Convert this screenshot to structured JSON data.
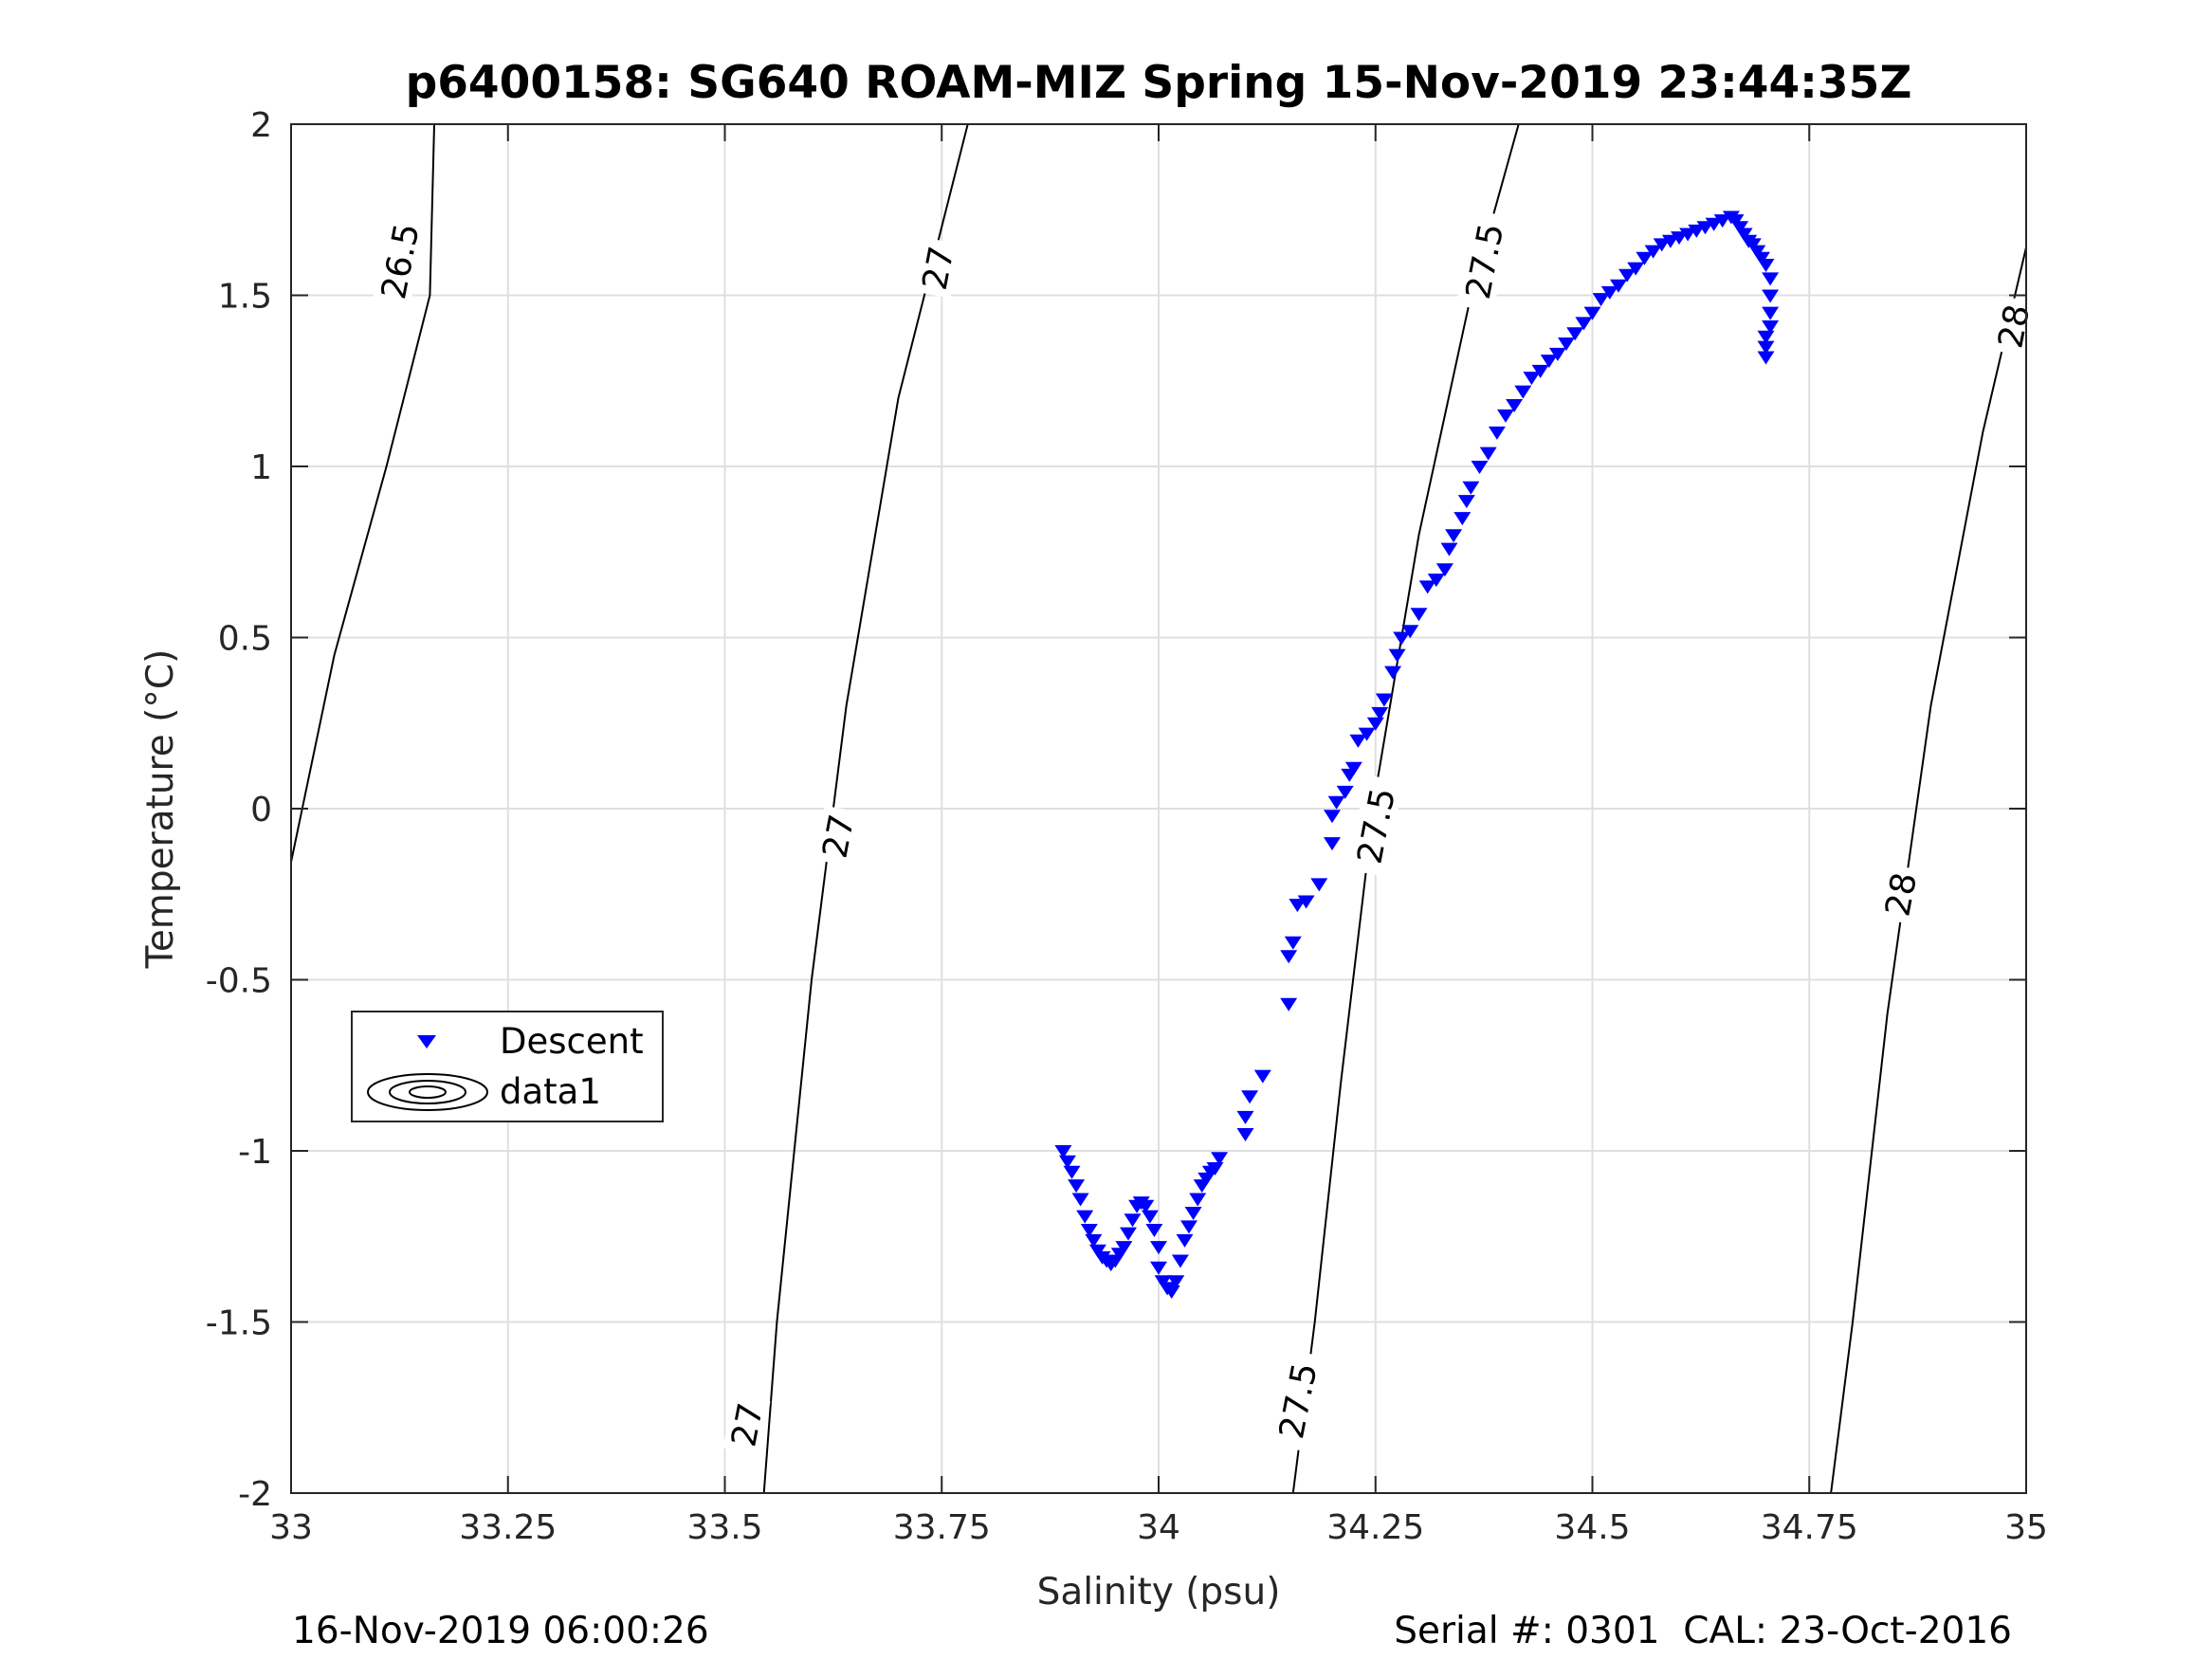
{
  "chart_data": {
    "type": "scatter",
    "title": "p6400158: SG640 ROAM-MIZ Spring 15-Nov-2019 23:44:35Z",
    "xlabel": "Salinity (psu)",
    "ylabel": "Temperature (°C)",
    "xlim": [
      33,
      35
    ],
    "ylim": [
      -2,
      2
    ],
    "xticks": [
      33,
      33.25,
      33.5,
      33.75,
      34,
      34.25,
      34.5,
      34.75,
      35
    ],
    "xtick_labels": [
      "33",
      "33.25",
      "33.5",
      "33.75",
      "34",
      "34.25",
      "34.5",
      "34.75",
      "35"
    ],
    "yticks": [
      -2,
      -1.5,
      -1,
      -0.5,
      0,
      0.5,
      1,
      1.5,
      2
    ],
    "ytick_labels": [
      "-2",
      "-1.5",
      "-1",
      "-0.5",
      "0",
      "0.5",
      "1",
      "1.5",
      "2"
    ],
    "grid": true,
    "legend": {
      "position": "lower-left",
      "entries": [
        {
          "label": "Descent",
          "marker": "triangle-down",
          "color": "#0000ff"
        },
        {
          "label": "data1",
          "marker": "contour",
          "color": "#000000"
        }
      ]
    },
    "contours": [
      {
        "level": "26.5",
        "points": [
          [
            32.998,
            -0.18
          ],
          [
            33.05,
            0.45
          ],
          [
            33.11,
            1.0
          ],
          [
            33.16,
            1.5
          ],
          [
            33.165,
            2.0
          ]
        ]
      },
      {
        "level": "27",
        "points": [
          [
            33.545,
            -2.0
          ],
          [
            33.56,
            -1.5
          ],
          [
            33.6,
            -0.5
          ],
          [
            33.64,
            0.3
          ],
          [
            33.7,
            1.2
          ],
          [
            33.78,
            2.0
          ]
        ]
      },
      {
        "level": "27.5",
        "points": [
          [
            34.155,
            -2.0
          ],
          [
            34.18,
            -1.5
          ],
          [
            34.21,
            -0.8
          ],
          [
            34.25,
            0.05
          ],
          [
            34.3,
            0.8
          ],
          [
            34.36,
            1.5
          ],
          [
            34.415,
            2.0
          ]
        ]
      },
      {
        "level": "28",
        "points": [
          [
            34.775,
            -2.0
          ],
          [
            34.8,
            -1.5
          ],
          [
            34.84,
            -0.6
          ],
          [
            34.89,
            0.3
          ],
          [
            34.95,
            1.1
          ],
          [
            35.0,
            1.64
          ]
        ]
      }
    ],
    "contour_labels": [
      {
        "text": "26.5",
        "s": 33.125,
        "t": 1.6
      },
      {
        "text": "27",
        "s": 33.525,
        "t": -1.8
      },
      {
        "text": "27",
        "s": 33.63,
        "t": -0.08
      },
      {
        "text": "27",
        "s": 33.745,
        "t": 1.58
      },
      {
        "text": "27.5",
        "s": 34.16,
        "t": -1.73
      },
      {
        "text": "27.5",
        "s": 34.25,
        "t": -0.05
      },
      {
        "text": "27.5",
        "s": 34.375,
        "t": 1.6
      },
      {
        "text": "28",
        "s": 34.855,
        "t": -0.25
      },
      {
        "text": "28",
        "s": 34.985,
        "t": 1.41
      }
    ],
    "series": [
      {
        "name": "Descent",
        "marker": "triangle-down",
        "color": "#0000ff",
        "points": [
          [
            33.89,
            -1.0
          ],
          [
            33.895,
            -1.03
          ],
          [
            33.9,
            -1.06
          ],
          [
            33.905,
            -1.1
          ],
          [
            33.91,
            -1.14
          ],
          [
            33.915,
            -1.19
          ],
          [
            33.92,
            -1.23
          ],
          [
            33.925,
            -1.26
          ],
          [
            33.93,
            -1.29
          ],
          [
            33.935,
            -1.31
          ],
          [
            33.94,
            -1.32
          ],
          [
            33.945,
            -1.33
          ],
          [
            33.95,
            -1.32
          ],
          [
            33.955,
            -1.3
          ],
          [
            33.96,
            -1.28
          ],
          [
            33.965,
            -1.24
          ],
          [
            33.97,
            -1.2
          ],
          [
            33.975,
            -1.16
          ],
          [
            33.98,
            -1.15
          ],
          [
            33.985,
            -1.16
          ],
          [
            33.99,
            -1.19
          ],
          [
            33.995,
            -1.23
          ],
          [
            34.0,
            -1.28
          ],
          [
            34.0,
            -1.34
          ],
          [
            34.005,
            -1.38
          ],
          [
            34.01,
            -1.4
          ],
          [
            34.015,
            -1.41
          ],
          [
            34.02,
            -1.38
          ],
          [
            34.025,
            -1.32
          ],
          [
            34.03,
            -1.26
          ],
          [
            34.035,
            -1.22
          ],
          [
            34.04,
            -1.18
          ],
          [
            34.045,
            -1.14
          ],
          [
            34.05,
            -1.1
          ],
          [
            34.055,
            -1.08
          ],
          [
            34.06,
            -1.06
          ],
          [
            34.065,
            -1.05
          ],
          [
            34.07,
            -1.02
          ],
          [
            34.1,
            -0.95
          ],
          [
            34.1,
            -0.9
          ],
          [
            34.105,
            -0.84
          ],
          [
            34.12,
            -0.78
          ],
          [
            34.15,
            -0.57
          ],
          [
            34.15,
            -0.43
          ],
          [
            34.155,
            -0.39
          ],
          [
            34.16,
            -0.28
          ],
          [
            34.17,
            -0.27
          ],
          [
            34.185,
            -0.22
          ],
          [
            34.2,
            -0.1
          ],
          [
            34.2,
            -0.02
          ],
          [
            34.205,
            0.02
          ],
          [
            34.215,
            0.05
          ],
          [
            34.22,
            0.1
          ],
          [
            34.225,
            0.12
          ],
          [
            34.23,
            0.2
          ],
          [
            34.24,
            0.22
          ],
          [
            34.25,
            0.25
          ],
          [
            34.255,
            0.28
          ],
          [
            34.26,
            0.32
          ],
          [
            34.27,
            0.4
          ],
          [
            34.275,
            0.45
          ],
          [
            34.28,
            0.5
          ],
          [
            34.29,
            0.52
          ],
          [
            34.3,
            0.57
          ],
          [
            34.31,
            0.65
          ],
          [
            34.32,
            0.67
          ],
          [
            34.33,
            0.7
          ],
          [
            34.335,
            0.76
          ],
          [
            34.34,
            0.8
          ],
          [
            34.35,
            0.85
          ],
          [
            34.355,
            0.9
          ],
          [
            34.36,
            0.94
          ],
          [
            34.37,
            1.0
          ],
          [
            34.38,
            1.04
          ],
          [
            34.39,
            1.1
          ],
          [
            34.4,
            1.15
          ],
          [
            34.41,
            1.18
          ],
          [
            34.42,
            1.22
          ],
          [
            34.43,
            1.26
          ],
          [
            34.44,
            1.28
          ],
          [
            34.45,
            1.31
          ],
          [
            34.46,
            1.33
          ],
          [
            34.47,
            1.36
          ],
          [
            34.48,
            1.39
          ],
          [
            34.49,
            1.42
          ],
          [
            34.5,
            1.45
          ],
          [
            34.51,
            1.49
          ],
          [
            34.52,
            1.51
          ],
          [
            34.53,
            1.53
          ],
          [
            34.54,
            1.56
          ],
          [
            34.55,
            1.58
          ],
          [
            34.56,
            1.61
          ],
          [
            34.57,
            1.63
          ],
          [
            34.58,
            1.65
          ],
          [
            34.59,
            1.66
          ],
          [
            34.6,
            1.67
          ],
          [
            34.61,
            1.68
          ],
          [
            34.62,
            1.69
          ],
          [
            34.63,
            1.7
          ],
          [
            34.64,
            1.71
          ],
          [
            34.65,
            1.72
          ],
          [
            34.66,
            1.73
          ],
          [
            34.665,
            1.72
          ],
          [
            34.67,
            1.7
          ],
          [
            34.675,
            1.68
          ],
          [
            34.68,
            1.66
          ],
          [
            34.685,
            1.65
          ],
          [
            34.69,
            1.63
          ],
          [
            34.695,
            1.61
          ],
          [
            34.7,
            1.59
          ],
          [
            34.705,
            1.55
          ],
          [
            34.705,
            1.5
          ],
          [
            34.705,
            1.45
          ],
          [
            34.705,
            1.41
          ],
          [
            34.7,
            1.38
          ],
          [
            34.7,
            1.35
          ],
          [
            34.7,
            1.32
          ]
        ]
      }
    ]
  },
  "footer": {
    "left": "16-Nov-2019 06:00:26",
    "right": "Serial #: 0301  CAL: 23-Oct-2016"
  }
}
